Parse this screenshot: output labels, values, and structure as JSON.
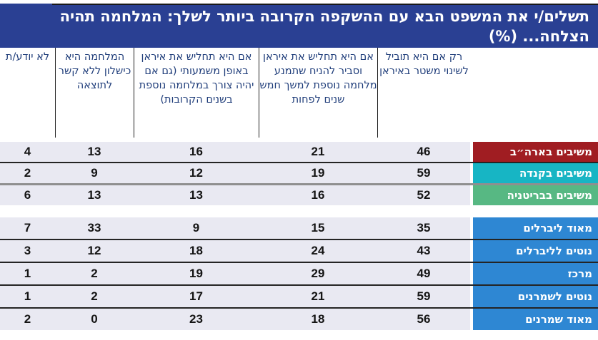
{
  "title": {
    "line1": "תשלים/י את המשפט הבא עם ההשקפה הקרובה ביותר לשלך: המלחמה תהיה",
    "line2": "הצלחה... (%)"
  },
  "colors": {
    "title_bg": "#2a4093",
    "header_text": "#1f3d7a",
    "row_bg": "#e9e9f2",
    "separator": "#242424",
    "thick_separator": "#8f8f8f",
    "usa_red": "#a01d22",
    "canada_teal": "#17b5c4",
    "uk_green": "#57b883",
    "ideology_blue": "#2e87d3"
  },
  "chart_data": {
    "type": "table",
    "title": "תשלים/י את המשפט הבא עם ההשקפה הקרובה ביותר לשלך: המלחמה תהיה הצלחה... (%)",
    "columns": [
      "רק אם היא תוביל לשינוי משטר באיראן",
      "אם היא תחליש את איראן וסביר להניח שתמנע מלחמה נוספת למשך חמש שנים לפחות",
      "אם היא תחליש את איראן באופן משמעותי (גם אם יהיה צורך במלחמה נוספת בשנים הקרובות)",
      "המלחמה היא כישלון ללא קשר לתוצאה",
      "לא יודע/ת"
    ],
    "groups": [
      {
        "rows": [
          {
            "label": "משיבים בארה״ב",
            "color": "#a01d22",
            "values": [
              46,
              21,
              16,
              13,
              4
            ]
          },
          {
            "label": "משיבים בקנדה",
            "color": "#17b5c4",
            "values": [
              59,
              19,
              12,
              9,
              2
            ]
          },
          {
            "label": "משיבים בבריטניה",
            "color": "#57b883",
            "values": [
              52,
              16,
              13,
              13,
              6
            ]
          }
        ]
      },
      {
        "rows": [
          {
            "label": "מאוד ליברלים",
            "color": "#2e87d3",
            "values": [
              35,
              15,
              9,
              33,
              7
            ]
          },
          {
            "label": "נוטים לליברלים",
            "color": "#2e87d3",
            "values": [
              43,
              24,
              18,
              12,
              3
            ]
          },
          {
            "label": "מרכז",
            "color": "#2e87d3",
            "values": [
              49,
              29,
              19,
              2,
              1
            ]
          },
          {
            "label": "נוטים לשמרנים",
            "color": "#2e87d3",
            "values": [
              59,
              21,
              17,
              2,
              1
            ]
          },
          {
            "label": "מאוד שמרנים",
            "color": "#2e87d3",
            "values": [
              56,
              18,
              23,
              0,
              2
            ]
          }
        ]
      }
    ]
  }
}
